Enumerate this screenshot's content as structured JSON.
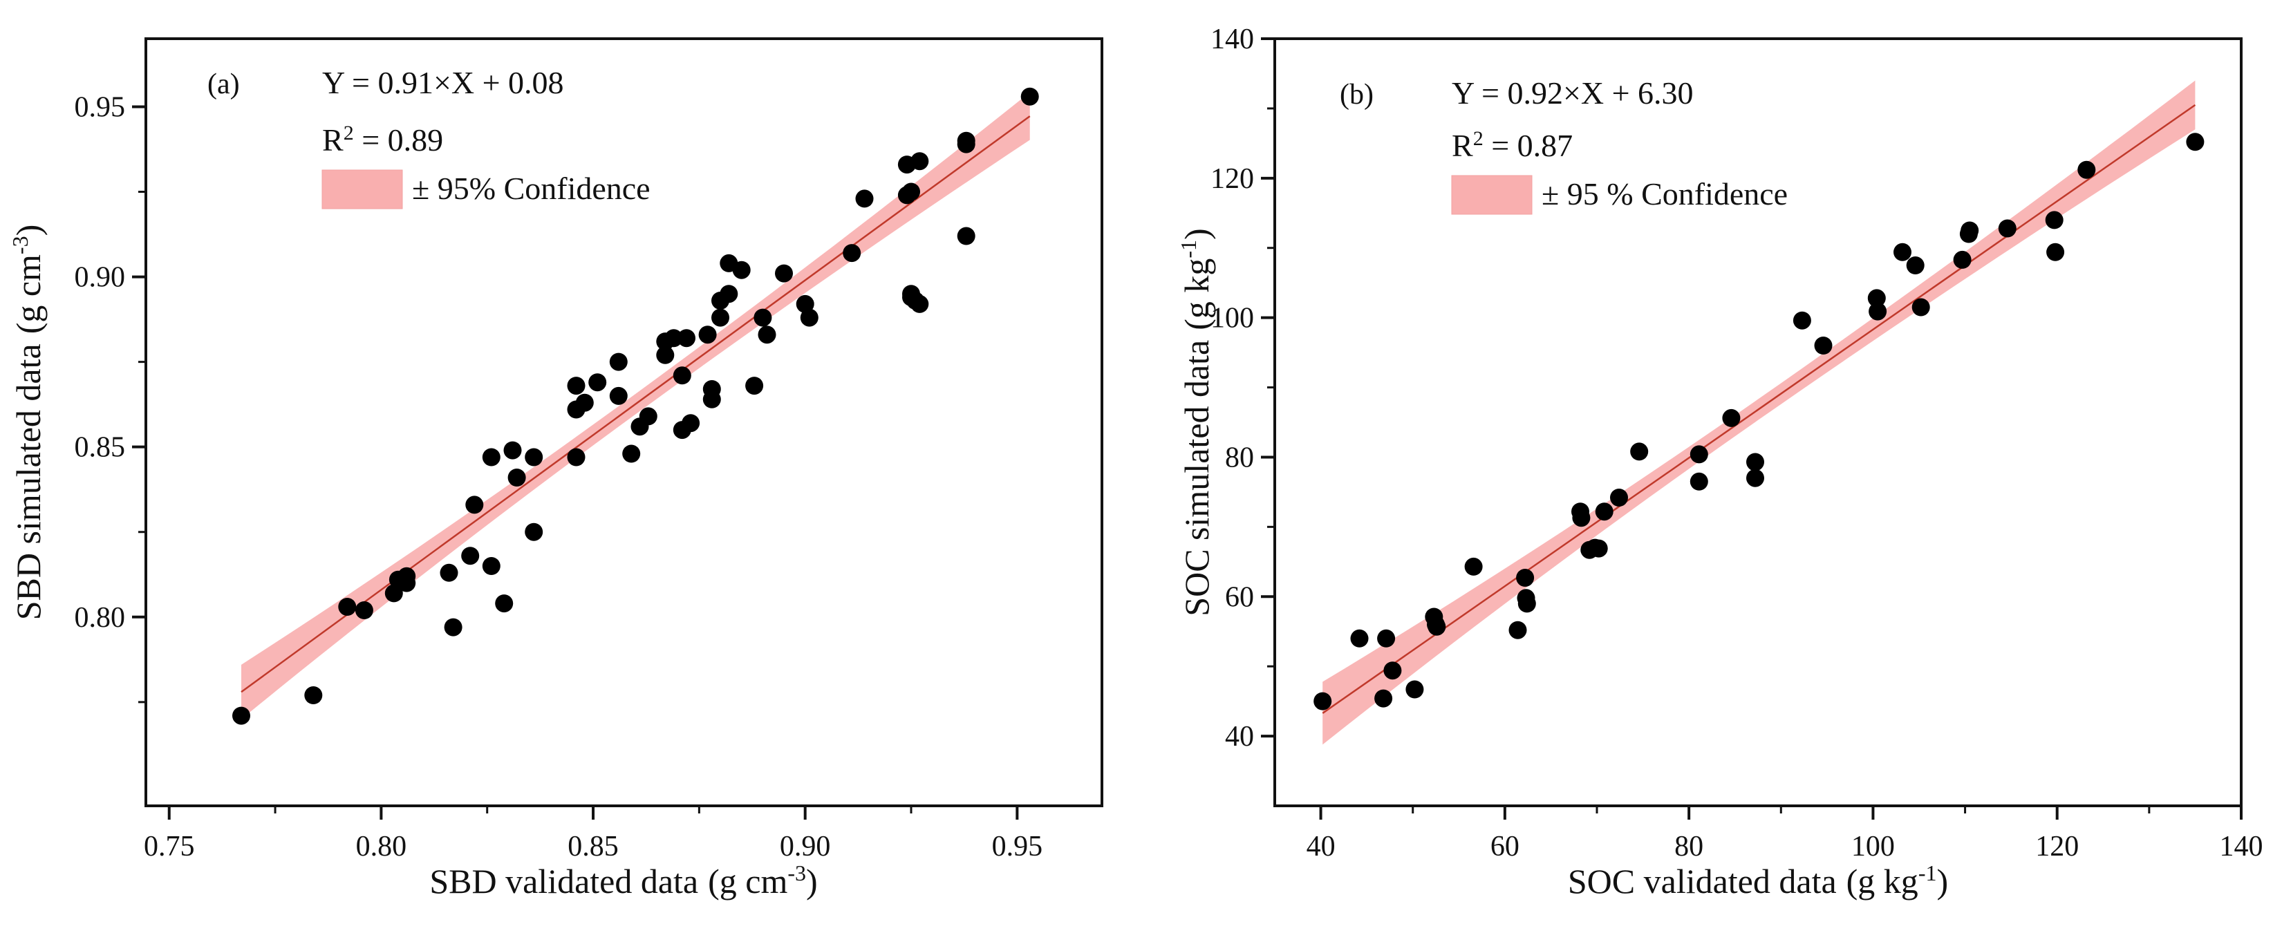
{
  "chart_data": [
    {
      "type": "scatter",
      "panel_label": "(a)",
      "xlabel": "SBD validated data",
      "xlabel_unit": "(g cm",
      "xlabel_unit_sup": "-3",
      "xlabel_unit_end": ")",
      "ylabel": "SBD simulated data",
      "ylabel_unit": "(g cm",
      "ylabel_unit_sup": "-3",
      "ylabel_unit_end": ")",
      "xlim": [
        0.7445,
        0.97
      ],
      "ylim": [
        0.7445,
        0.97
      ],
      "xticks": [
        0.75,
        0.8,
        0.85,
        0.9,
        0.95
      ],
      "xtick_labels": [
        "0.75",
        "0.80",
        "0.85",
        "0.90",
        "0.95"
      ],
      "yticks": [
        0.8,
        0.85,
        0.9,
        0.95
      ],
      "ytick_labels": [
        "0.80",
        "0.85",
        "0.90",
        "0.95"
      ],
      "minor_x": [
        0.775,
        0.825,
        0.875,
        0.925
      ],
      "minor_y": [
        0.775,
        0.825,
        0.875,
        0.925
      ],
      "equation": "Y = 0.91×X + 0.08",
      "r2_label": "R",
      "r2_sup": "2",
      "r2_value": " = 0.89",
      "legend_label": "± 95% Confidence",
      "fit": {
        "slope": 0.91,
        "intercept": 0.08,
        "x_range": [
          0.767,
          0.953
        ],
        "band_half": [
          0.008,
          0.003,
          0.007
        ]
      },
      "points": [
        [
          0.767,
          0.771
        ],
        [
          0.784,
          0.777
        ],
        [
          0.792,
          0.803
        ],
        [
          0.796,
          0.802
        ],
        [
          0.803,
          0.807
        ],
        [
          0.804,
          0.811
        ],
        [
          0.806,
          0.812
        ],
        [
          0.806,
          0.81
        ],
        [
          0.816,
          0.813
        ],
        [
          0.817,
          0.797
        ],
        [
          0.821,
          0.818
        ],
        [
          0.822,
          0.833
        ],
        [
          0.826,
          0.847
        ],
        [
          0.826,
          0.815
        ],
        [
          0.829,
          0.804
        ],
        [
          0.831,
          0.849
        ],
        [
          0.832,
          0.841
        ],
        [
          0.836,
          0.847
        ],
        [
          0.836,
          0.825
        ],
        [
          0.846,
          0.868
        ],
        [
          0.846,
          0.861
        ],
        [
          0.846,
          0.847
        ],
        [
          0.848,
          0.863
        ],
        [
          0.851,
          0.869
        ],
        [
          0.856,
          0.875
        ],
        [
          0.856,
          0.865
        ],
        [
          0.859,
          0.848
        ],
        [
          0.861,
          0.856
        ],
        [
          0.863,
          0.859
        ],
        [
          0.867,
          0.881
        ],
        [
          0.867,
          0.877
        ],
        [
          0.869,
          0.882
        ],
        [
          0.871,
          0.855
        ],
        [
          0.871,
          0.871
        ],
        [
          0.872,
          0.882
        ],
        [
          0.873,
          0.857
        ],
        [
          0.877,
          0.883
        ],
        [
          0.878,
          0.867
        ],
        [
          0.878,
          0.864
        ],
        [
          0.88,
          0.888
        ],
        [
          0.88,
          0.893
        ],
        [
          0.882,
          0.895
        ],
        [
          0.882,
          0.904
        ],
        [
          0.885,
          0.902
        ],
        [
          0.888,
          0.868
        ],
        [
          0.89,
          0.888
        ],
        [
          0.891,
          0.883
        ],
        [
          0.895,
          0.901
        ],
        [
          0.9,
          0.892
        ],
        [
          0.901,
          0.888
        ],
        [
          0.911,
          0.907
        ],
        [
          0.914,
          0.923
        ],
        [
          0.924,
          0.933
        ],
        [
          0.924,
          0.924
        ],
        [
          0.925,
          0.925
        ],
        [
          0.925,
          0.895
        ],
        [
          0.925,
          0.894
        ],
        [
          0.926,
          0.893
        ],
        [
          0.927,
          0.892
        ],
        [
          0.927,
          0.934
        ],
        [
          0.938,
          0.912
        ],
        [
          0.938,
          0.94
        ],
        [
          0.938,
          0.939
        ],
        [
          0.953,
          0.953
        ]
      ]
    },
    {
      "type": "scatter",
      "panel_label": "(b)",
      "xlabel": "SOC validated data",
      "xlabel_unit": "(g kg",
      "xlabel_unit_sup": "-1",
      "xlabel_unit_end": ")",
      "ylabel": "SOC simulated data",
      "ylabel_unit": "(g kg",
      "ylabel_unit_sup": "-1",
      "ylabel_unit_end": ")",
      "xlim": [
        35,
        140
      ],
      "ylim": [
        30,
        140
      ],
      "xticks": [
        40,
        60,
        80,
        100,
        120,
        140
      ],
      "xtick_labels": [
        "40",
        "60",
        "80",
        "100",
        "120",
        "140"
      ],
      "yticks": [
        40,
        60,
        80,
        100,
        120,
        140
      ],
      "ytick_labels": [
        "40",
        "60",
        "80",
        "100",
        "120",
        "140"
      ],
      "minor_x": [
        50,
        70,
        90,
        110,
        130
      ],
      "minor_y": [
        50,
        70,
        90,
        110,
        130
      ],
      "equation": "Y = 0.92×X + 6.30",
      "r2_label": "R",
      "r2_sup": "2",
      "r2_value": " = 0.87",
      "legend_label": "± 95 % Confidence",
      "fit": {
        "slope": 0.92,
        "intercept": 6.3,
        "x_range": [
          40.2,
          135.0
        ],
        "band_half": [
          4.5,
          1.5,
          3.5
        ]
      },
      "points": [
        [
          40.2,
          45.0
        ],
        [
          44.2,
          54.0
        ],
        [
          46.8,
          45.4
        ],
        [
          47.1,
          54.0
        ],
        [
          47.8,
          49.4
        ],
        [
          50.2,
          46.7
        ],
        [
          52.3,
          57.1
        ],
        [
          52.5,
          56.0
        ],
        [
          52.6,
          55.7
        ],
        [
          56.6,
          64.3
        ],
        [
          61.4,
          55.2
        ],
        [
          62.2,
          62.7
        ],
        [
          62.3,
          59.8
        ],
        [
          62.4,
          59.0
        ],
        [
          68.2,
          72.2
        ],
        [
          68.3,
          71.3
        ],
        [
          69.2,
          66.7
        ],
        [
          69.8,
          67.0
        ],
        [
          70.2,
          66.9
        ],
        [
          70.8,
          72.2
        ],
        [
          72.4,
          74.2
        ],
        [
          74.6,
          80.8
        ],
        [
          81.1,
          80.4
        ],
        [
          81.1,
          76.5
        ],
        [
          84.6,
          85.6
        ],
        [
          87.2,
          79.3
        ],
        [
          87.2,
          77.0
        ],
        [
          92.3,
          99.6
        ],
        [
          94.6,
          96.0
        ],
        [
          100.4,
          102.8
        ],
        [
          100.5,
          100.9
        ],
        [
          103.2,
          109.4
        ],
        [
          104.6,
          107.5
        ],
        [
          105.2,
          101.5
        ],
        [
          109.7,
          108.3
        ],
        [
          110.4,
          112.0
        ],
        [
          110.5,
          112.5
        ],
        [
          114.6,
          112.8
        ],
        [
          119.7,
          114.0
        ],
        [
          119.8,
          109.4
        ],
        [
          123.2,
          121.2
        ],
        [
          135.0,
          125.2
        ]
      ]
    }
  ]
}
